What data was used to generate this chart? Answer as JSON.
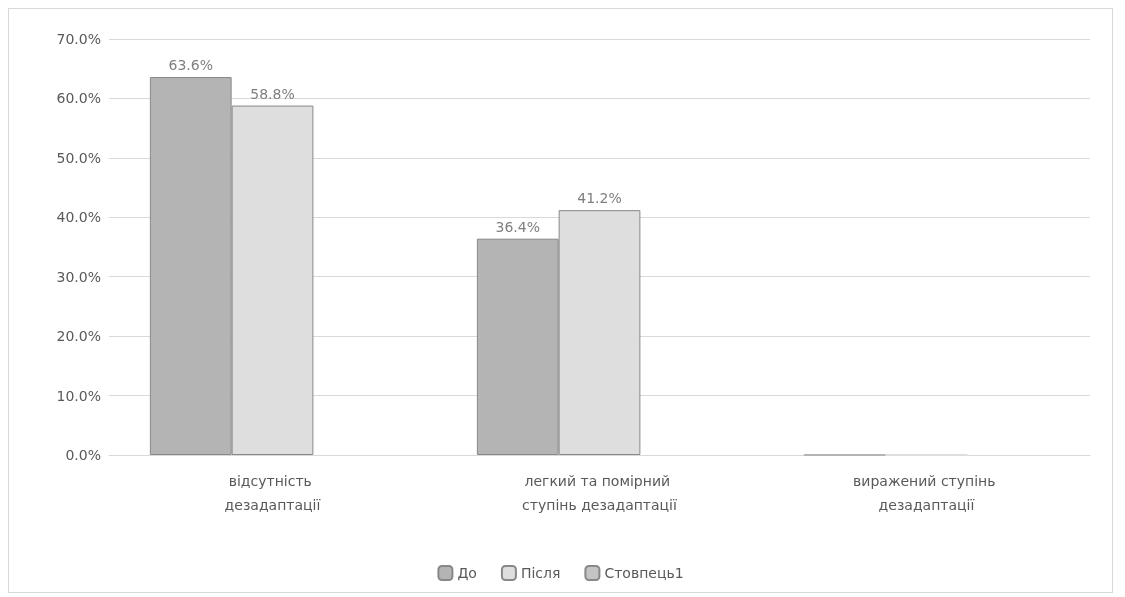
{
  "chart_data": {
    "type": "bar",
    "categories": [
      "відсутність дезадаптації",
      "легкий та помірний ступінь дезадаптації",
      "виражений ступінь дезадаптації"
    ],
    "series": [
      {
        "name": "До",
        "color": "#b4b4b4",
        "values": [
          63.6,
          36.4,
          0
        ],
        "value_labels": [
          "63.6%",
          "36.4%",
          null
        ]
      },
      {
        "name": "Після",
        "color": "#dedede",
        "values": [
          58.8,
          41.2,
          0
        ],
        "value_labels": [
          "58.8%",
          "41.2%",
          null
        ]
      },
      {
        "name": "Стовпець1",
        "color": "#c4c4c4",
        "values": [
          null,
          null,
          null
        ]
      }
    ],
    "ylim": [
      0,
      70
    ],
    "yticks": [
      {
        "value": 0,
        "label": "0.0%"
      },
      {
        "value": 10,
        "label": "10.0%"
      },
      {
        "value": 20,
        "label": "20.0%"
      },
      {
        "value": 30,
        "label": "30.0%"
      },
      {
        "value": 40,
        "label": "40.0%"
      },
      {
        "value": 50,
        "label": "50.0%"
      },
      {
        "value": 60,
        "label": "60.0%"
      },
      {
        "value": 70,
        "label": "70.0%"
      }
    ],
    "grid": "y",
    "legend": "bottom"
  }
}
